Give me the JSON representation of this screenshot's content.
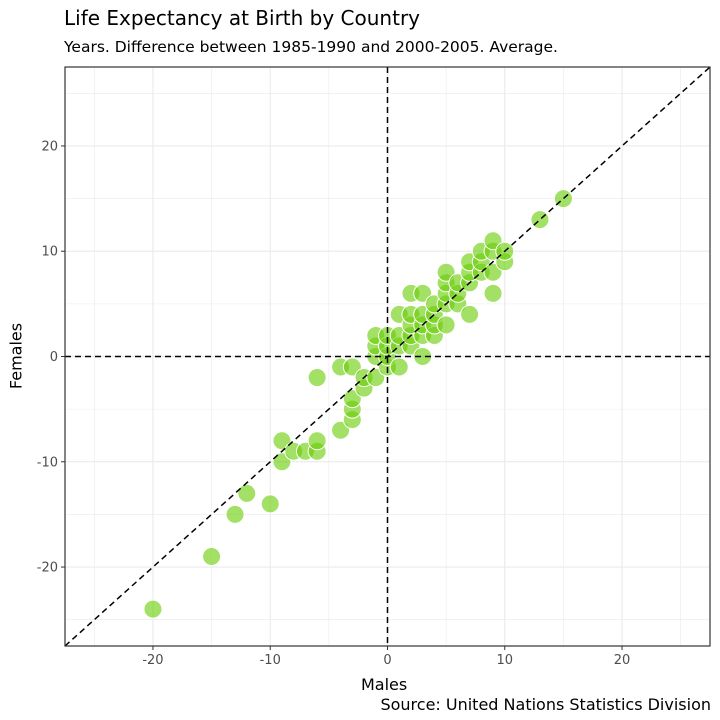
{
  "chart_data": {
    "type": "scatter",
    "title": "Life Expectancy at Birth by Country",
    "subtitle": "Years. Difference between 1985-1990 and 2000-2005. Average.",
    "xlabel": "Males",
    "ylabel": "Females",
    "caption": "Source: United Nations Statistics Division",
    "xlim": [
      -27.5,
      27.5
    ],
    "ylim": [
      -27.5,
      27.5
    ],
    "x_ticks": [
      -20,
      -10,
      0,
      10,
      20
    ],
    "y_ticks": [
      -20,
      -10,
      0,
      10,
      20
    ],
    "grid": true,
    "reference_lines": [
      "x = 0",
      "y = 0",
      "y = x"
    ],
    "point_color": "#66CC00",
    "point_opacity": 0.6,
    "points": [
      {
        "x": -20,
        "y": -24
      },
      {
        "x": -15,
        "y": -19
      },
      {
        "x": -13,
        "y": -15
      },
      {
        "x": -12,
        "y": -13
      },
      {
        "x": -10,
        "y": -14
      },
      {
        "x": -9,
        "y": -10
      },
      {
        "x": -9,
        "y": -8
      },
      {
        "x": -8,
        "y": -9
      },
      {
        "x": -7,
        "y": -9
      },
      {
        "x": -6,
        "y": -9
      },
      {
        "x": -6,
        "y": -8
      },
      {
        "x": -6,
        "y": -2
      },
      {
        "x": -4,
        "y": -7
      },
      {
        "x": -4,
        "y": -1
      },
      {
        "x": -3,
        "y": -6
      },
      {
        "x": -3,
        "y": -5
      },
      {
        "x": -3,
        "y": -4
      },
      {
        "x": -3,
        "y": -1
      },
      {
        "x": -2,
        "y": -3
      },
      {
        "x": -2,
        "y": -2
      },
      {
        "x": -1,
        "y": -2
      },
      {
        "x": -1,
        "y": 0
      },
      {
        "x": -1,
        "y": 1
      },
      {
        "x": -1,
        "y": 2
      },
      {
        "x": 0,
        "y": -1
      },
      {
        "x": 0,
        "y": 0
      },
      {
        "x": 0,
        "y": 1
      },
      {
        "x": 0,
        "y": 2
      },
      {
        "x": 1,
        "y": -1
      },
      {
        "x": 1,
        "y": 1
      },
      {
        "x": 1,
        "y": 2
      },
      {
        "x": 1,
        "y": 4
      },
      {
        "x": 2,
        "y": 1
      },
      {
        "x": 2,
        "y": 2
      },
      {
        "x": 2,
        "y": 3
      },
      {
        "x": 2,
        "y": 4
      },
      {
        "x": 2,
        "y": 6
      },
      {
        "x": 3,
        "y": 0
      },
      {
        "x": 3,
        "y": 2
      },
      {
        "x": 3,
        "y": 3
      },
      {
        "x": 3,
        "y": 4
      },
      {
        "x": 3,
        "y": 6
      },
      {
        "x": 4,
        "y": 2
      },
      {
        "x": 4,
        "y": 3
      },
      {
        "x": 4,
        "y": 4
      },
      {
        "x": 4,
        "y": 5
      },
      {
        "x": 5,
        "y": 3
      },
      {
        "x": 5,
        "y": 5
      },
      {
        "x": 5,
        "y": 6
      },
      {
        "x": 5,
        "y": 7
      },
      {
        "x": 5,
        "y": 8
      },
      {
        "x": 6,
        "y": 5
      },
      {
        "x": 6,
        "y": 6
      },
      {
        "x": 6,
        "y": 7
      },
      {
        "x": 7,
        "y": 4
      },
      {
        "x": 7,
        "y": 7
      },
      {
        "x": 7,
        "y": 8
      },
      {
        "x": 7,
        "y": 9
      },
      {
        "x": 8,
        "y": 8
      },
      {
        "x": 8,
        "y": 9
      },
      {
        "x": 8,
        "y": 10
      },
      {
        "x": 9,
        "y": 6
      },
      {
        "x": 9,
        "y": 8
      },
      {
        "x": 9,
        "y": 10
      },
      {
        "x": 9,
        "y": 11
      },
      {
        "x": 10,
        "y": 9
      },
      {
        "x": 10,
        "y": 10
      },
      {
        "x": 13,
        "y": 13
      },
      {
        "x": 15,
        "y": 15
      }
    ]
  }
}
